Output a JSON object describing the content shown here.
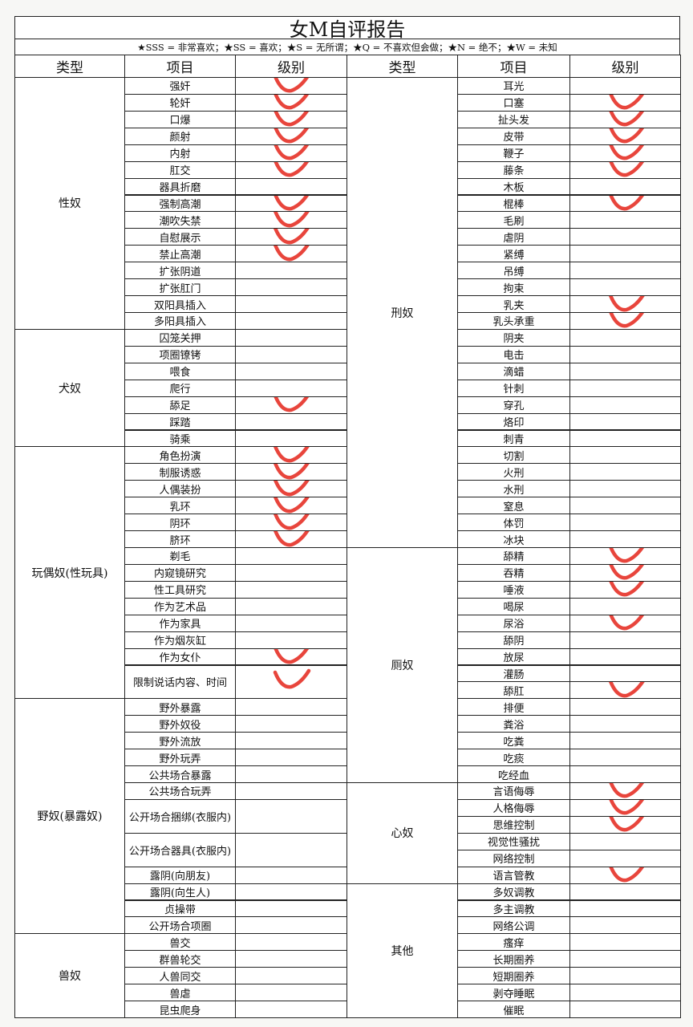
{
  "title": "女M自评报告",
  "legend": "★SSS = 非常喜欢；★SS = 喜欢；★S = 无所谓；★Q = 不喜欢但会做；★N = 绝不；★W = 未知",
  "headers": {
    "type": "类型",
    "item": "项目",
    "level": "级别"
  },
  "mark_color": "#e8453c",
  "left": [
    {
      "type": "性奴",
      "items": [
        {
          "name": "强奸",
          "checked": true
        },
        {
          "name": "轮奸",
          "checked": true
        },
        {
          "name": "口爆",
          "checked": true
        },
        {
          "name": "颜射",
          "checked": true
        },
        {
          "name": "内射",
          "checked": true
        },
        {
          "name": "肛交",
          "checked": true
        },
        {
          "name": "器具折磨",
          "checked": false
        },
        {
          "name": "强制高潮",
          "checked": true
        },
        {
          "name": "潮吹失禁",
          "checked": true
        },
        {
          "name": "自慰展示",
          "checked": true
        },
        {
          "name": "禁止高潮",
          "checked": true
        },
        {
          "name": "扩张阴道",
          "checked": false
        },
        {
          "name": "扩张肛门",
          "checked": false
        },
        {
          "name": "双阳具插入",
          "checked": false
        },
        {
          "name": "多阳具插入",
          "checked": false
        }
      ]
    },
    {
      "type": "犬奴",
      "items": [
        {
          "name": "囚笼关押",
          "checked": false
        },
        {
          "name": "项圈镣铐",
          "checked": false
        },
        {
          "name": "喂食",
          "checked": false
        },
        {
          "name": "爬行",
          "checked": false
        },
        {
          "name": "舔足",
          "checked": true
        },
        {
          "name": "踩踏",
          "checked": false
        },
        {
          "name": "骑乘",
          "checked": false
        }
      ]
    },
    {
      "type": "玩偶奴(性玩具)",
      "items": [
        {
          "name": "角色扮演",
          "checked": true
        },
        {
          "name": "制服诱惑",
          "checked": true
        },
        {
          "name": "人偶装扮",
          "checked": true
        },
        {
          "name": "乳环",
          "checked": true
        },
        {
          "name": "阴环",
          "checked": true
        },
        {
          "name": "脐环",
          "checked": true
        },
        {
          "name": "剃毛",
          "checked": false
        },
        {
          "name": "内窥镜研究",
          "checked": false
        },
        {
          "name": "性工具研究",
          "checked": false
        },
        {
          "name": "作为艺术品",
          "checked": false
        },
        {
          "name": "作为家具",
          "checked": false
        },
        {
          "name": "作为烟灰缸",
          "checked": false
        },
        {
          "name": "作为女仆",
          "checked": true
        },
        {
          "name": "限制说话内容、时间",
          "checked": true
        }
      ]
    },
    {
      "type": "野奴(暴露奴)",
      "items": [
        {
          "name": "野外暴露",
          "checked": false
        },
        {
          "name": "野外奴役",
          "checked": false
        },
        {
          "name": "野外流放",
          "checked": false
        },
        {
          "name": "野外玩弄",
          "checked": false
        },
        {
          "name": "公共场合暴露",
          "checked": false
        },
        {
          "name": "公共场合玩弄",
          "checked": false
        },
        {
          "name": "公开场合捆绑(衣服内)",
          "checked": false
        },
        {
          "name": "公开场合器具(衣服内)",
          "checked": false
        },
        {
          "name": "露阴(向朋友)",
          "checked": false
        },
        {
          "name": "露阴(向生人)",
          "checked": false
        },
        {
          "name": "贞操带",
          "checked": false
        },
        {
          "name": "公开场合项圈",
          "checked": false
        }
      ]
    },
    {
      "type": "兽奴",
      "items": [
        {
          "name": "兽交",
          "checked": false
        },
        {
          "name": "群兽轮交",
          "checked": false
        },
        {
          "name": "人兽同交",
          "checked": false
        },
        {
          "name": "兽虐",
          "checked": false
        },
        {
          "name": "昆虫爬身",
          "checked": false
        }
      ]
    }
  ],
  "right": [
    {
      "type": "刑奴",
      "items": [
        {
          "name": "耳光",
          "checked": false
        },
        {
          "name": "口塞",
          "checked": true
        },
        {
          "name": "扯头发",
          "checked": true
        },
        {
          "name": "皮带",
          "checked": true
        },
        {
          "name": "鞭子",
          "checked": true
        },
        {
          "name": "藤条",
          "checked": true
        },
        {
          "name": "木板",
          "checked": false
        },
        {
          "name": "棍棒",
          "checked": true
        },
        {
          "name": "毛刷",
          "checked": false
        },
        {
          "name": "虐阴",
          "checked": false
        },
        {
          "name": "紧缚",
          "checked": false
        },
        {
          "name": "吊缚",
          "checked": false
        },
        {
          "name": "拘束",
          "checked": false
        },
        {
          "name": "乳夹",
          "checked": true
        },
        {
          "name": "乳头承重",
          "checked": true
        },
        {
          "name": "阴夹",
          "checked": false
        },
        {
          "name": "电击",
          "checked": false
        },
        {
          "name": "滴蜡",
          "checked": false
        },
        {
          "name": "针刺",
          "checked": false
        },
        {
          "name": "穿孔",
          "checked": false
        },
        {
          "name": "烙印",
          "checked": false
        },
        {
          "name": "刺青",
          "checked": false
        },
        {
          "name": "切割",
          "checked": false
        },
        {
          "name": "火刑",
          "checked": false
        },
        {
          "name": "水刑",
          "checked": false
        },
        {
          "name": "窒息",
          "checked": false
        },
        {
          "name": "体罚",
          "checked": false
        },
        {
          "name": "冰块",
          "checked": false
        }
      ]
    },
    {
      "type": "厕奴",
      "items": [
        {
          "name": "舔精",
          "checked": true
        },
        {
          "name": "吞精",
          "checked": true
        },
        {
          "name": "唾液",
          "checked": true
        },
        {
          "name": "喝尿",
          "checked": false
        },
        {
          "name": "尿浴",
          "checked": true
        },
        {
          "name": "舔阴",
          "checked": false
        },
        {
          "name": "放尿",
          "checked": false
        },
        {
          "name": "灌肠",
          "checked": false
        },
        {
          "name": "舔肛",
          "checked": true
        },
        {
          "name": "排便",
          "checked": false
        },
        {
          "name": "粪浴",
          "checked": false
        },
        {
          "name": "吃粪",
          "checked": false
        },
        {
          "name": "吃痰",
          "checked": false
        },
        {
          "name": "吃经血",
          "checked": false
        }
      ]
    },
    {
      "type": "心奴",
      "items": [
        {
          "name": "言语侮辱",
          "checked": true
        },
        {
          "name": "人格侮辱",
          "checked": true
        },
        {
          "name": "思维控制",
          "checked": true
        },
        {
          "name": "视觉性骚扰",
          "checked": false
        },
        {
          "name": "网络控制",
          "checked": false
        },
        {
          "name": "语言管教",
          "checked": true
        }
      ]
    },
    {
      "type": "其他",
      "items": [
        {
          "name": "多奴调教",
          "checked": false
        },
        {
          "name": "多主调教",
          "checked": false
        },
        {
          "name": "网络公调",
          "checked": false
        },
        {
          "name": "瘙痒",
          "checked": false
        },
        {
          "name": "长期圈养",
          "checked": false
        },
        {
          "name": "短期圈养",
          "checked": false
        },
        {
          "name": "剥夺睡眠",
          "checked": false
        },
        {
          "name": "催眠",
          "checked": false
        }
      ]
    }
  ]
}
